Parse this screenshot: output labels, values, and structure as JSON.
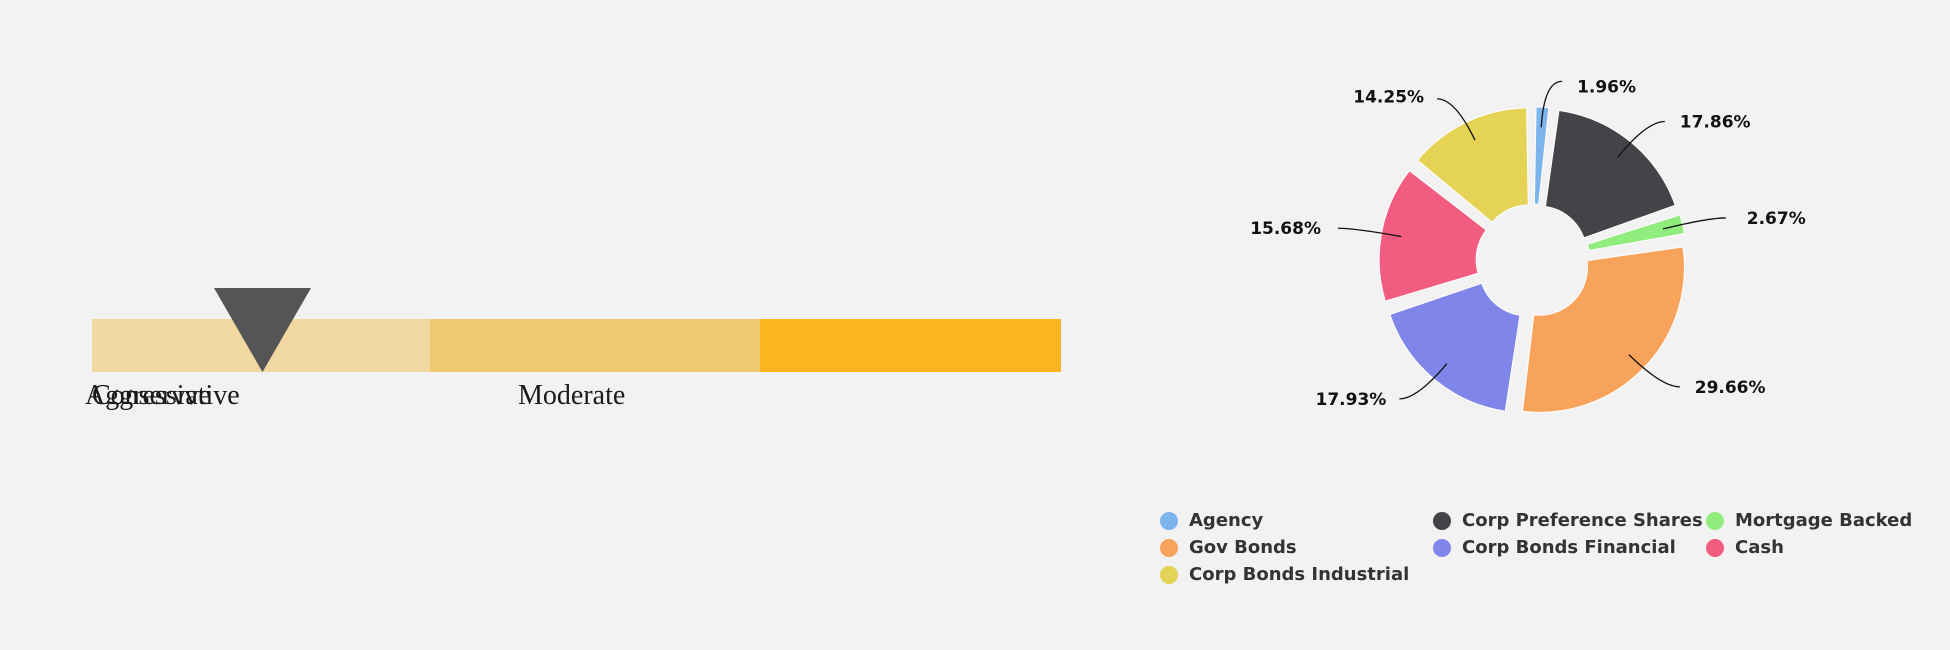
{
  "risk_scale": {
    "segments": [
      {
        "label": "Conservative",
        "color": "#f0d8a0"
      },
      {
        "label": "Moderate",
        "color": "#f0c870"
      },
      {
        "label": "Aggressive",
        "color": "#fcb521"
      }
    ],
    "pointer_color": "#555555",
    "pointer_icon": "triangle-down-icon",
    "pointer_position_fraction": 0.176
  },
  "chart_data": {
    "type": "pie",
    "donut": true,
    "slices": [
      {
        "name": "Agency",
        "value": 1.96,
        "label": "1.96%",
        "color": "#7cb5ec"
      },
      {
        "name": "Corp Preference Shares",
        "value": 17.86,
        "label": "17.86%",
        "color": "#434348"
      },
      {
        "name": "Mortgage Backed",
        "value": 2.67,
        "label": "2.67%",
        "color": "#90ed7d"
      },
      {
        "name": "Gov Bonds",
        "value": 29.66,
        "label": "29.66%",
        "color": "#f7a35c"
      },
      {
        "name": "Corp Bonds Financial",
        "value": 17.93,
        "label": "17.93%",
        "color": "#8085e9"
      },
      {
        "name": "Cash",
        "value": 15.68,
        "label": "15.68%",
        "color": "#f15c80"
      },
      {
        "name": "Corp Bonds Industrial",
        "value": 14.25,
        "label": "14.25%",
        "color": "#e4d354"
      }
    ],
    "legend_position": "bottom"
  }
}
